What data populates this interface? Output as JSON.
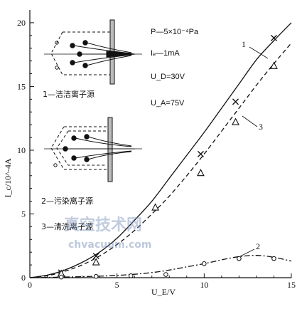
{
  "chart_data": {
    "type": "line",
    "xlabel": "U_E/V",
    "ylabel": "I_c/10^-4A",
    "xlim": [
      0,
      15
    ],
    "ylim": [
      0,
      21
    ],
    "xticks": [
      "0",
      "5",
      "10",
      "15"
    ],
    "yticks": [
      "0",
      "5",
      "10",
      "15",
      "20"
    ],
    "grid": false,
    "series": [
      {
        "name": "1",
        "line": "solid",
        "marker": "x",
        "color": "#111111",
        "curve_x": [
          0,
          1,
          2,
          3,
          4,
          5,
          6,
          7,
          8,
          9,
          10,
          11,
          12,
          13,
          14,
          15
        ],
        "curve_y": [
          0,
          0.2,
          0.6,
          1.2,
          2.0,
          3.1,
          4.5,
          6.0,
          7.8,
          9.6,
          11.4,
          13.3,
          15.2,
          17.1,
          18.6,
          20.0
        ],
        "points_x": [
          1.8,
          3.8,
          9.8,
          11.8,
          14.0
        ],
        "points_y": [
          0.4,
          1.7,
          9.7,
          13.8,
          18.8
        ]
      },
      {
        "name": "3",
        "line": "dashed",
        "marker": "triangle",
        "color": "#111111",
        "curve_x": [
          0,
          1,
          2,
          3,
          4,
          5,
          6,
          7,
          8,
          9,
          10,
          11,
          12,
          13,
          14,
          15
        ],
        "curve_y": [
          0,
          0.15,
          0.5,
          1.0,
          1.7,
          2.6,
          3.7,
          5.0,
          6.4,
          8.0,
          9.7,
          11.5,
          13.3,
          15.1,
          16.8,
          18.4
        ],
        "points_x": [
          1.8,
          3.8,
          7.2,
          9.8,
          11.8,
          14.0
        ],
        "points_y": [
          0.3,
          1.2,
          5.5,
          8.2,
          12.2,
          16.6
        ]
      },
      {
        "name": "2",
        "line": "dashdot",
        "marker": "circle",
        "color": "#111111",
        "curve_x": [
          0,
          1,
          2,
          3,
          4,
          5,
          6,
          7,
          8,
          9,
          10,
          11,
          12,
          13,
          14,
          15
        ],
        "curve_y": [
          0,
          0.02,
          0.05,
          0.08,
          0.12,
          0.18,
          0.27,
          0.4,
          0.6,
          0.85,
          1.1,
          1.4,
          1.65,
          1.75,
          1.6,
          1.3
        ],
        "points_x": [
          1.8,
          3.8,
          5.8,
          7.8,
          10.0,
          12.0,
          14.0
        ],
        "points_y": [
          0.05,
          0.1,
          0.15,
          0.25,
          1.1,
          1.5,
          1.5
        ]
      }
    ],
    "annotations": {
      "params": [
        "P—5×10⁻⁴Pa",
        "Iₑ—1mA",
        "U_D=30V",
        "U_A=75V"
      ],
      "inset_caption_1": "1—洁洁离子源",
      "inset_caption_2": "2—污染离子源",
      "inset_caption_3": "3—清洗离子源"
    }
  },
  "watermark": {
    "line1": "真空技术网",
    "line2": "chvacuum.com"
  }
}
